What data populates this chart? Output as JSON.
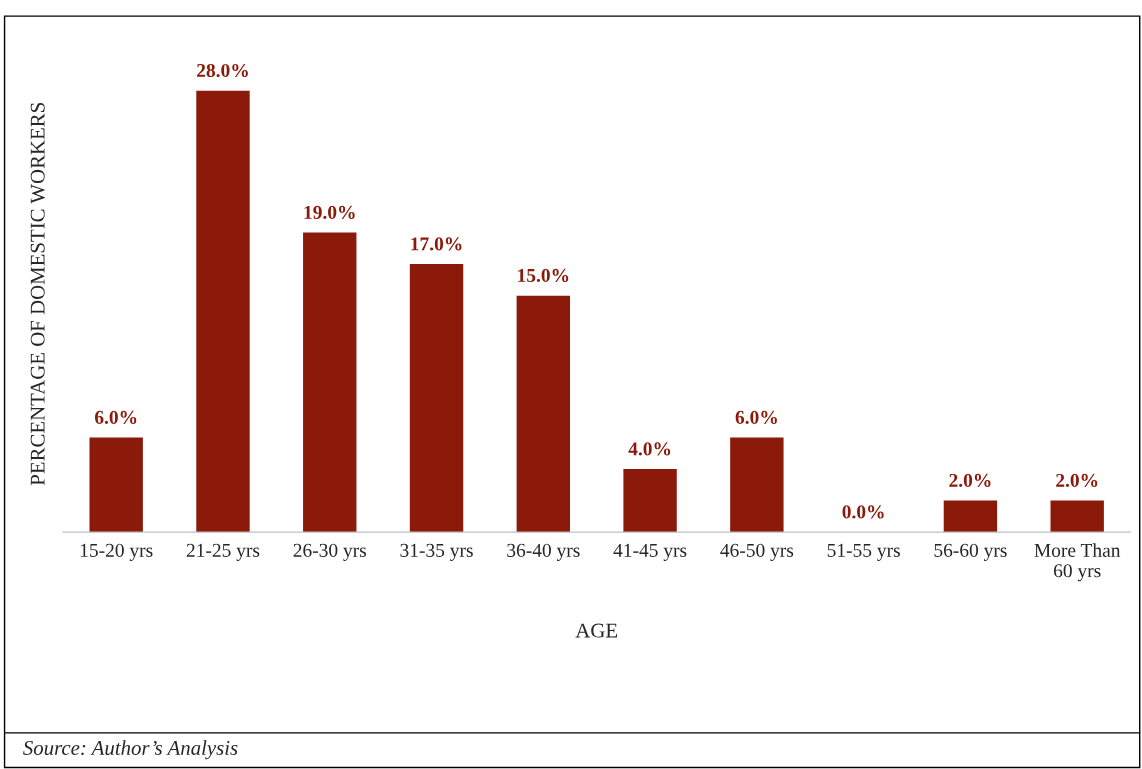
{
  "chart_data": {
    "type": "bar",
    "categories": [
      "15-20 yrs",
      "21-25 yrs",
      "26-30 yrs",
      "31-35 yrs",
      "36-40 yrs",
      "41-45 yrs",
      "46-50 yrs",
      "51-55 yrs",
      "56-60 yrs",
      "More Than 60 yrs"
    ],
    "values": [
      6.0,
      28.0,
      19.0,
      17.0,
      15.0,
      4.0,
      6.0,
      0.0,
      2.0,
      2.0
    ],
    "value_labels": [
      "6.0%",
      "28.0%",
      "19.0%",
      "17.0%",
      "15.0%",
      "4.0%",
      "6.0%",
      "0.0%",
      "2.0%",
      "2.0%"
    ],
    "color": "#8b1a0a",
    "xlabel": "AGE",
    "ylabel": "PERCENTAGE OF DOMESTIC WORKERS",
    "annotations": [
      "Source: Author’s Analysis"
    ],
    "tick_labels": "x",
    "grid": false,
    "legend": false
  }
}
